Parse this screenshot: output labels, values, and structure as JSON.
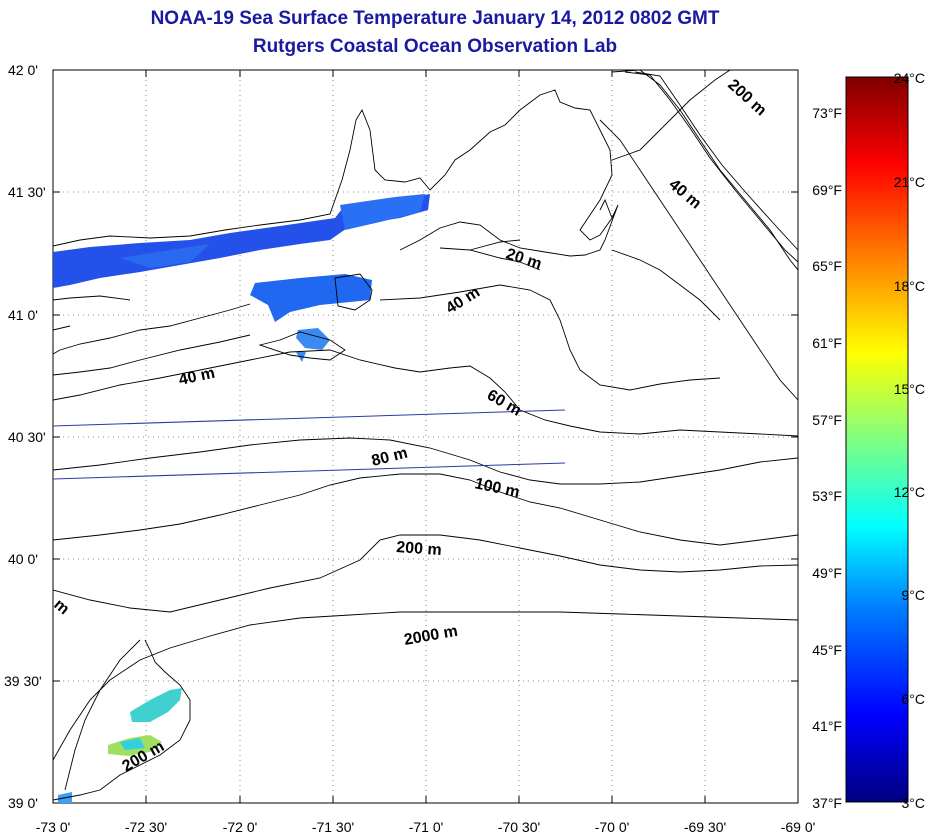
{
  "header": {
    "title": "NOAA-19 Sea Surface Temperature January 14, 2012 0802 GMT",
    "subtitle": "Rutgers Coastal Ocean Observation Lab"
  },
  "axes": {
    "lat_ticks": [
      "42 0'",
      "41 30'",
      "41 0'",
      "40 30'",
      "40 0'",
      "39 30'",
      "39 0'"
    ],
    "lon_ticks": [
      "-73 0'",
      "-72 30'",
      "-72 0'",
      "-71 30'",
      "-71 0'",
      "-70 30'",
      "-70 0'",
      "-69 30'",
      "-69 0'"
    ]
  },
  "fahrenheit_ticks": [
    "73°F",
    "69°F",
    "65°F",
    "61°F",
    "57°F",
    "53°F",
    "49°F",
    "45°F",
    "41°F",
    "37°F"
  ],
  "colorbar": {
    "celsius_ticks": [
      "24°C",
      "21°C",
      "18°C",
      "15°C",
      "12°C",
      "9°C",
      "6°C",
      "3°C"
    ],
    "range_c": [
      3,
      24
    ],
    "colors": [
      "#000080",
      "#0000ff",
      "#0080ff",
      "#00ffff",
      "#80ff80",
      "#ffff00",
      "#ff8000",
      "#ff0000",
      "#800000"
    ]
  },
  "contours": {
    "labels": [
      "20 m",
      "40 m",
      "40 m",
      "40 m",
      "60 m",
      "80 m",
      "100 m",
      "200 m",
      "200 m",
      "2000 m",
      "200 m",
      "m"
    ]
  }
}
